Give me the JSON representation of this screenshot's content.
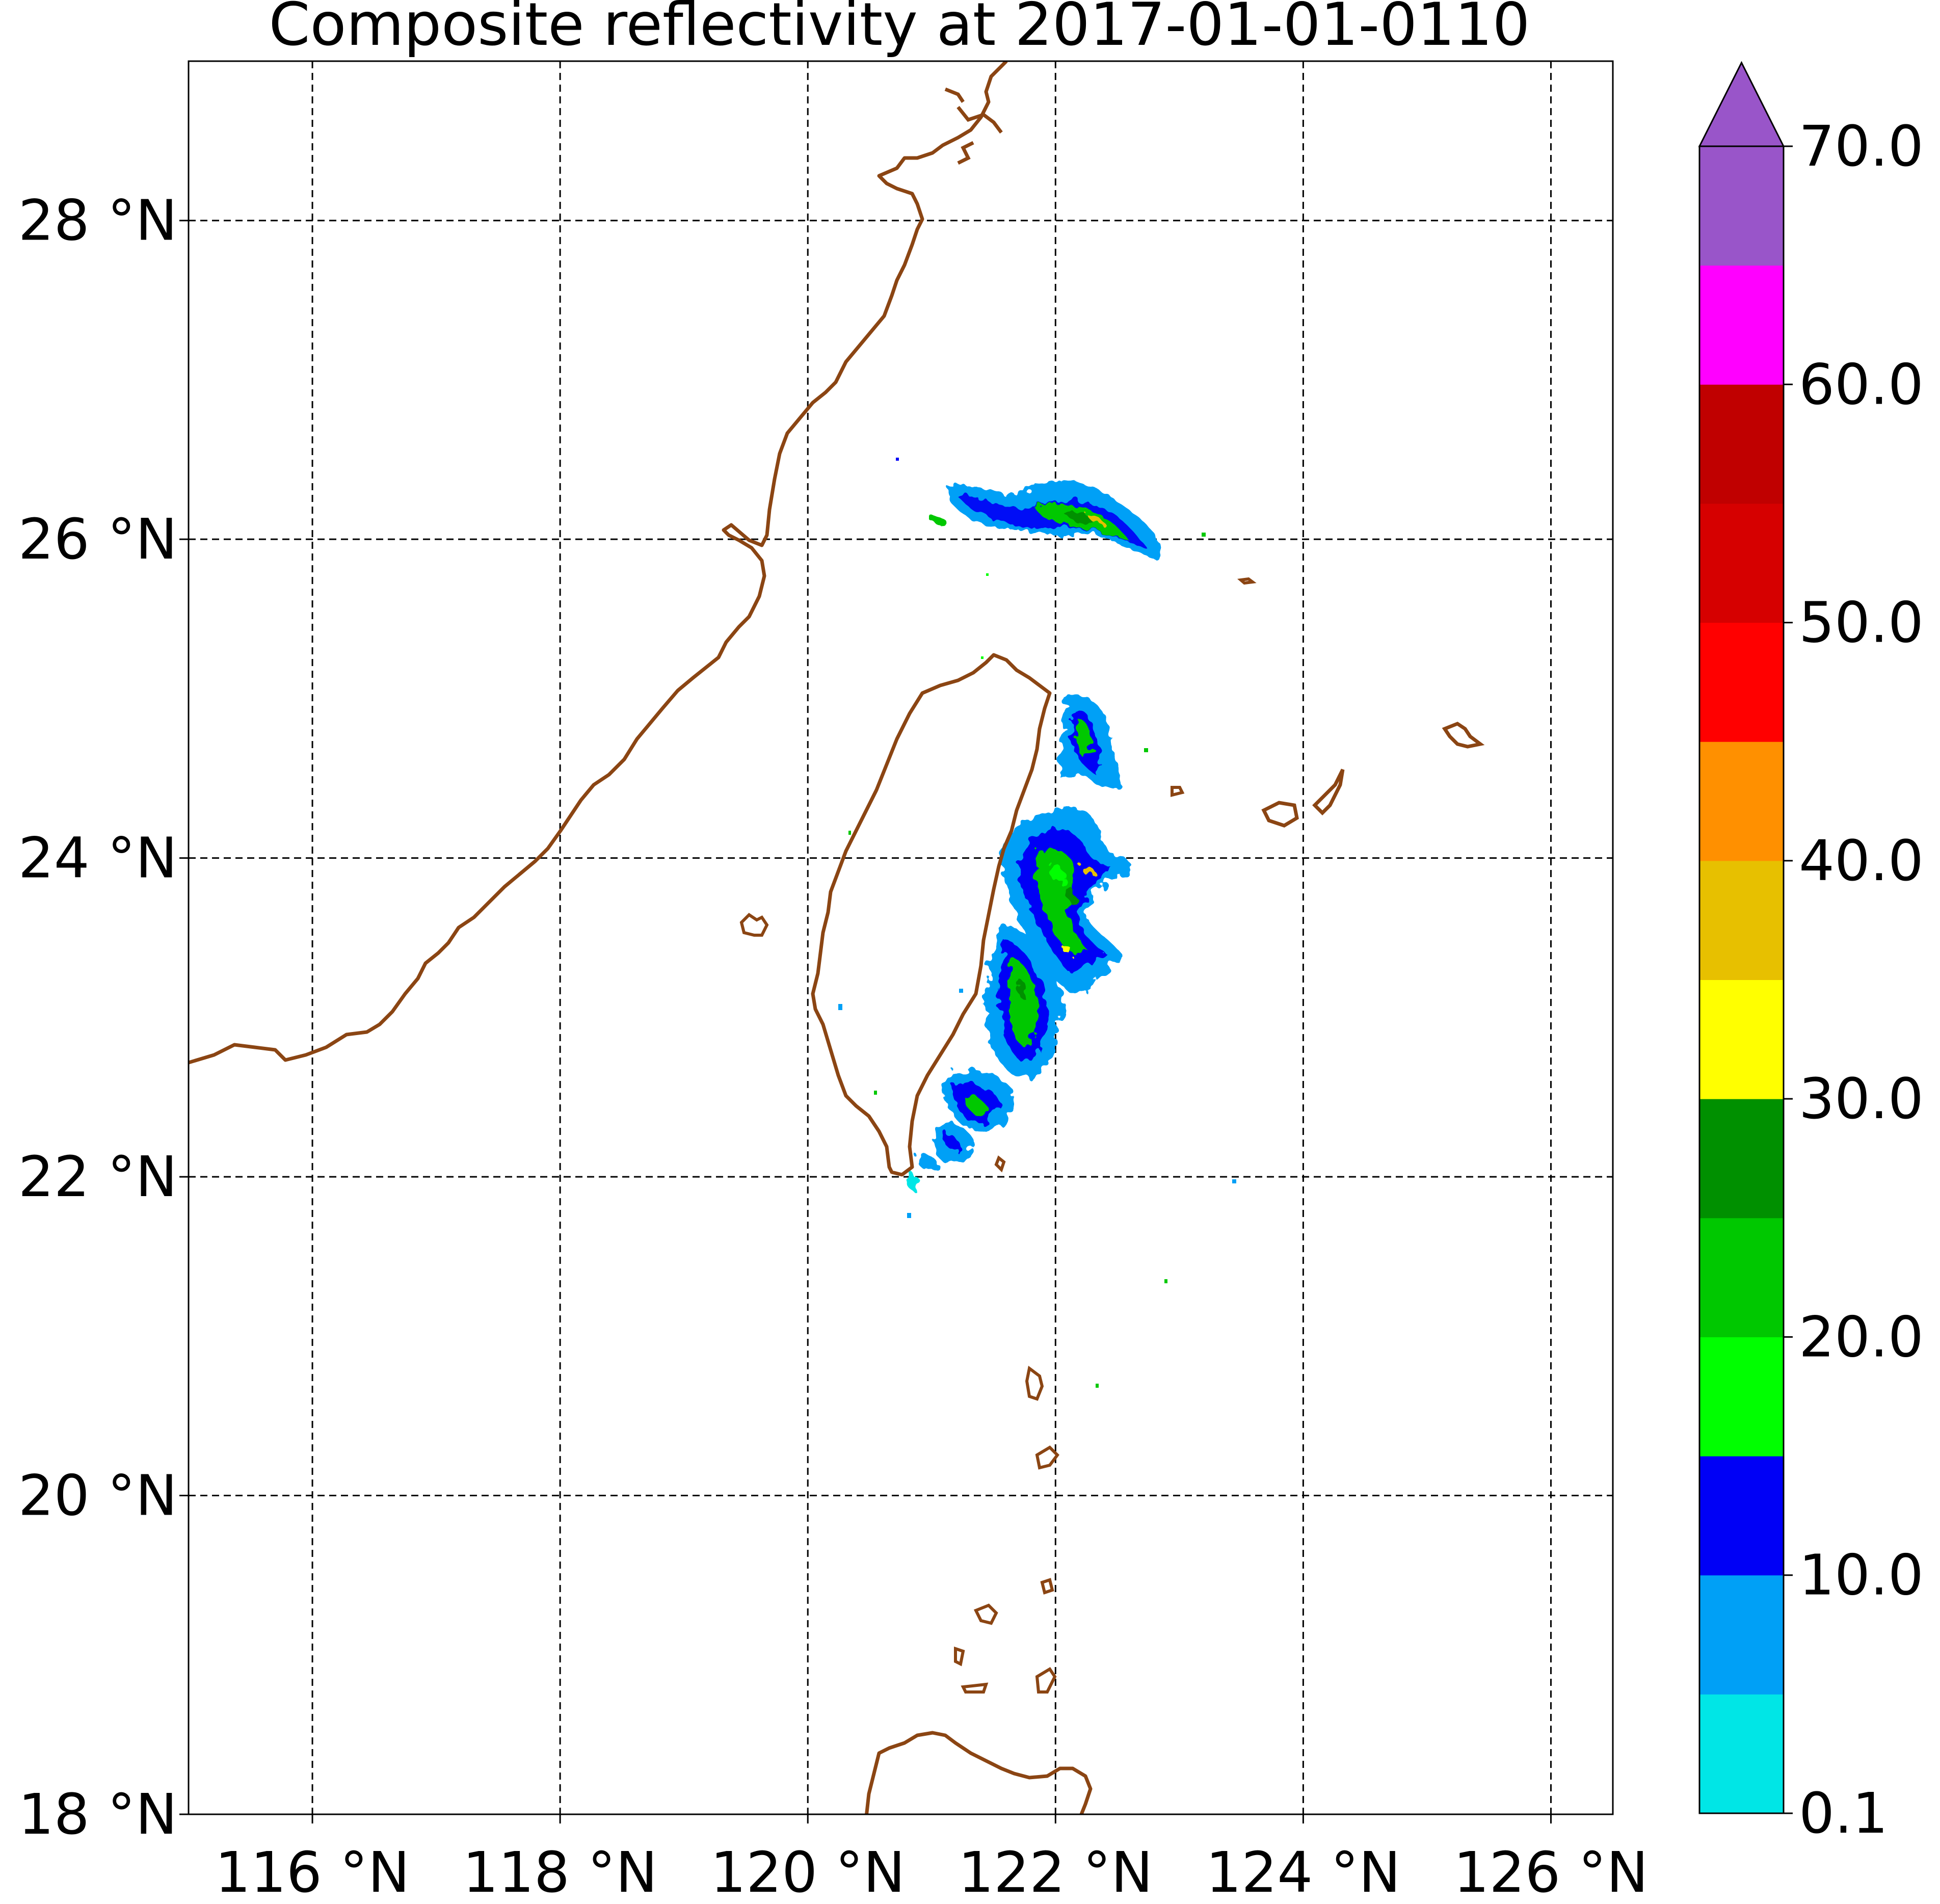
{
  "title": "Composite reflectivity at 2017-01-01-0110",
  "colors": {
    "coastline": "#8b4513",
    "gridline": "#000000",
    "frame": "#000000"
  },
  "map": {
    "lon_range": [
      115,
      126.5
    ],
    "lat_range": [
      18,
      29
    ],
    "x_ticks": [
      {
        "value": 116,
        "label": "116 °N"
      },
      {
        "value": 118,
        "label": "118 °N"
      },
      {
        "value": 120,
        "label": "120 °N"
      },
      {
        "value": 122,
        "label": "122 °N"
      },
      {
        "value": 124,
        "label": "124 °N"
      },
      {
        "value": 126,
        "label": "126 °N"
      }
    ],
    "y_ticks": [
      {
        "value": 18,
        "label": "18 °N"
      },
      {
        "value": 20,
        "label": "20 °N"
      },
      {
        "value": 22,
        "label": "22 °N"
      },
      {
        "value": 24,
        "label": "24 °N"
      },
      {
        "value": 26,
        "label": "26 °N"
      },
      {
        "value": 28,
        "label": "28 °N"
      }
    ],
    "grid": "dashed"
  },
  "colorbar": {
    "extend": "max",
    "bounds": [
      0.1,
      5,
      10,
      15,
      20,
      25,
      30,
      35,
      40,
      45,
      50,
      55,
      60,
      65,
      70
    ],
    "colors": [
      "#00e6e6",
      "#00a0f6",
      "#0000f6",
      "#00ff00",
      "#00c800",
      "#009000",
      "#ffff00",
      "#e7c000",
      "#ff9000",
      "#ff0000",
      "#d60000",
      "#c00000",
      "#ff00ff",
      "#9955c9"
    ],
    "extend_color": "#9955c9",
    "tick_labels": [
      {
        "value": 0.1,
        "label": "0.1"
      },
      {
        "value": 10,
        "label": "10.0"
      },
      {
        "value": 20,
        "label": "20.0"
      },
      {
        "value": 30,
        "label": "30.0"
      },
      {
        "value": 40,
        "label": "40.0"
      },
      {
        "value": 50,
        "label": "50.0"
      },
      {
        "value": 60,
        "label": "60.0"
      },
      {
        "value": 70,
        "label": "70.0"
      }
    ]
  },
  "chart_data": {
    "type": "heatmap",
    "title": "Composite reflectivity at 2017-01-01-0110",
    "x_range": [
      115,
      126.5
    ],
    "y_range": [
      18,
      29
    ],
    "x_tick_labels": [
      "116 °N",
      "118 °N",
      "120 °N",
      "122 °N",
      "124 °N",
      "126 °N"
    ],
    "y_tick_labels": [
      "18 °N",
      "20 °N",
      "22 °N",
      "24 °N",
      "26 °N",
      "28 °N"
    ],
    "colorbar_range": [
      0.1,
      70
    ],
    "grid": true,
    "echo_regions": [
      {
        "area": "north band near 26.2°N",
        "lon": [
          121.5,
          123.2
        ],
        "lat": [
          25.8,
          26.4
        ],
        "dbz": [
          5,
          30
        ]
      },
      {
        "area": "east of Taiwan north",
        "lon": [
          121.8,
          122.6
        ],
        "lat": [
          24.4,
          25.1
        ],
        "dbz": [
          5,
          30
        ]
      },
      {
        "area": "east of Taiwan central",
        "lon": [
          121.4,
          122.6
        ],
        "lat": [
          23.2,
          24.4
        ],
        "dbz": [
          5,
          35
        ]
      },
      {
        "area": "east of Taiwan south",
        "lon": [
          120.9,
          122.0
        ],
        "lat": [
          21.9,
          23.2
        ],
        "dbz": [
          0.1,
          30
        ]
      }
    ]
  }
}
